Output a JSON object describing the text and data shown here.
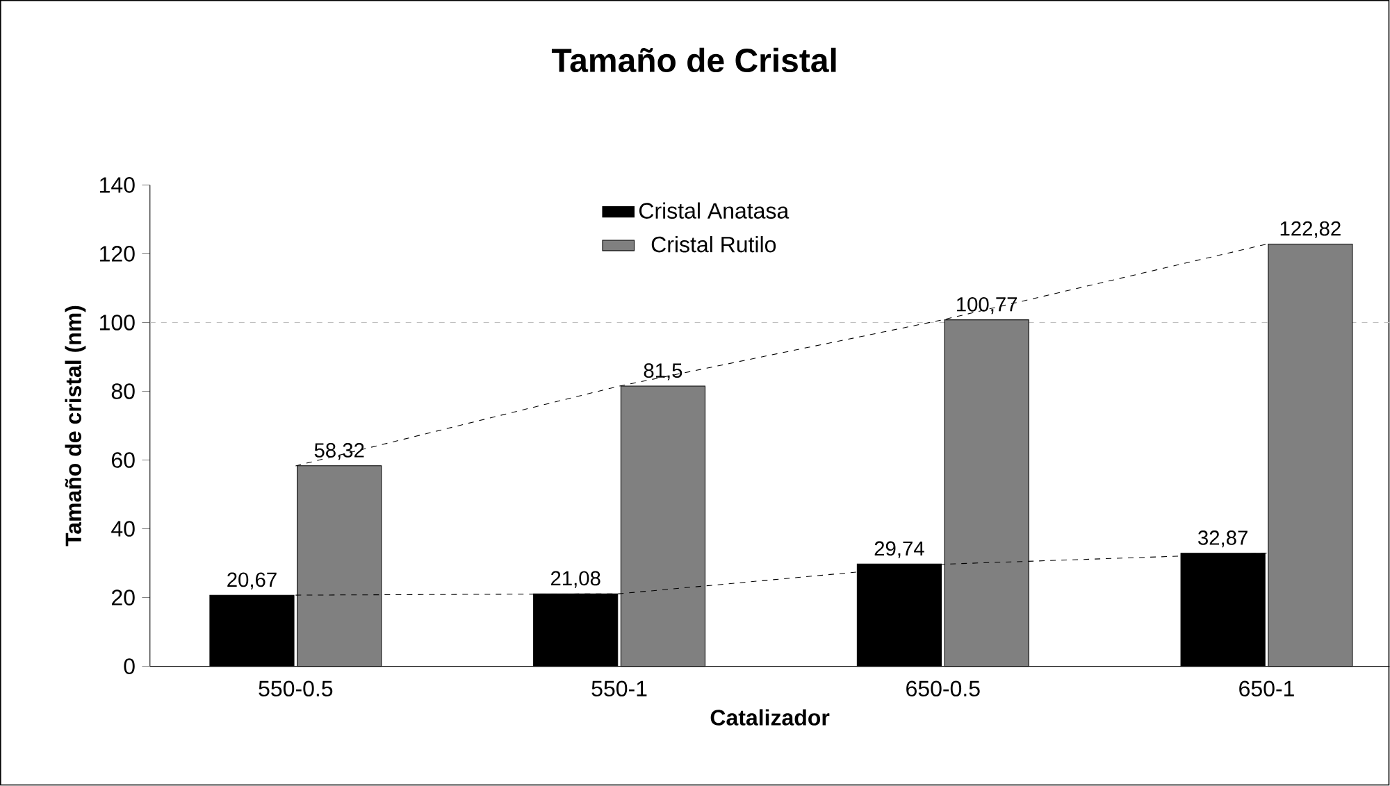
{
  "chart_data": {
    "type": "bar",
    "title": "Tamaño de Cristal",
    "xlabel": "Catalizador",
    "ylabel": "Tamaño de cristal (nm)",
    "categories": [
      "550-0.5",
      "550-1",
      "650-0.5",
      "650-1"
    ],
    "series": [
      {
        "name": "Cristal Anatasa",
        "color": "#000000",
        "values": [
          20.67,
          21.08,
          29.74,
          32.87
        ],
        "value_labels": [
          "20,67",
          "21,08",
          "29,74",
          "32,87"
        ]
      },
      {
        "name": "Cristal Rutilo",
        "color": "#808080",
        "values": [
          58.32,
          81.5,
          100.77,
          122.82
        ],
        "value_labels": [
          "58,32",
          "81,5",
          "100,77",
          "122,82"
        ]
      },
      {
        "type": "line",
        "color": "#000000",
        "line_style": "dashed",
        "values": [
          20.7,
          21.1,
          29.7,
          32.9
        ]
      },
      {
        "type": "line",
        "color": "#000000",
        "line_style": "dashed",
        "values": [
          58.3,
          81.5,
          100.8,
          122.8
        ]
      }
    ],
    "ylim": [
      0,
      140
    ],
    "yticks": [
      0,
      20,
      40,
      60,
      80,
      100,
      120,
      140
    ],
    "ref_lines": [
      {
        "axis": "y",
        "value": 100,
        "color": "#bfbfbf",
        "line_style": "dashed"
      }
    ],
    "legend": "top",
    "grid": false
  }
}
